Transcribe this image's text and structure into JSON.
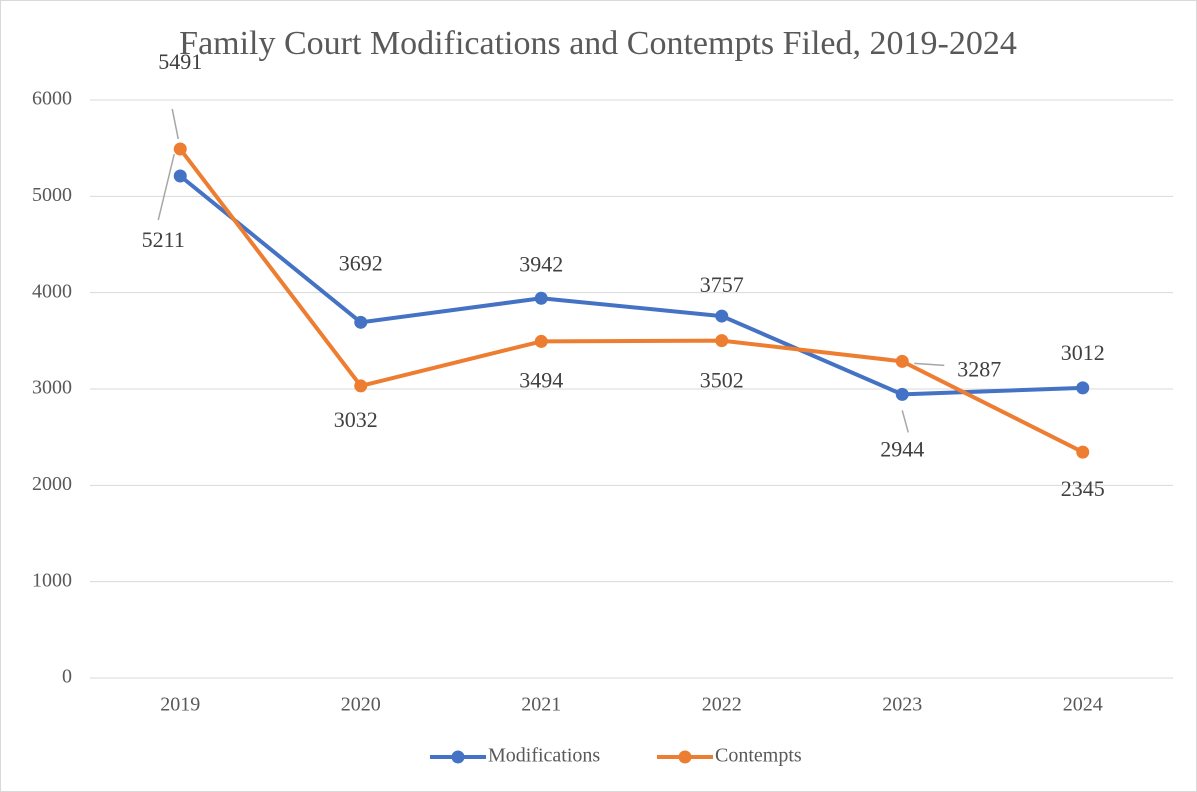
{
  "chart_data": {
    "type": "line",
    "title": "Family Court Modifications and Contempts Filed, 2019-2024",
    "categories": [
      "2019",
      "2020",
      "2021",
      "2022",
      "2023",
      "2024"
    ],
    "series": [
      {
        "name": "Modifications",
        "color": "#4472c4",
        "values": [
          5211,
          3692,
          3942,
          3757,
          2944,
          3012
        ]
      },
      {
        "name": "Contempts",
        "color": "#ed7d31",
        "values": [
          5491,
          3032,
          3494,
          3502,
          3287,
          2345
        ]
      }
    ],
    "ylim": [
      0,
      6000
    ],
    "yticks": [
      0,
      1000,
      2000,
      3000,
      4000,
      5000,
      6000
    ],
    "grid": true,
    "legend": "bottom"
  }
}
